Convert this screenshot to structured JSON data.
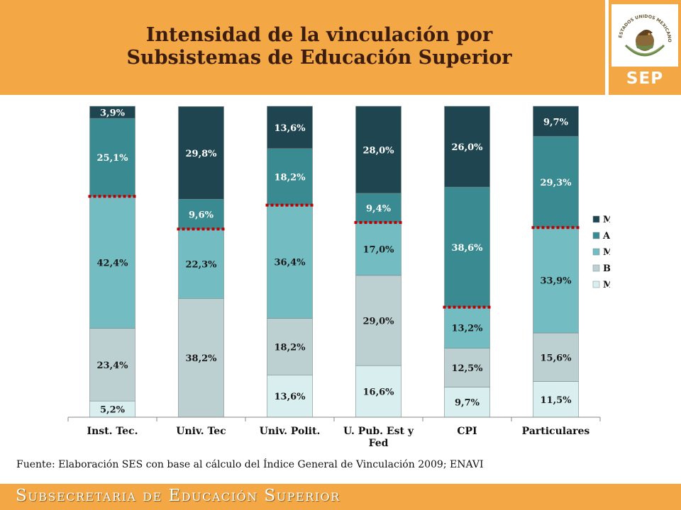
{
  "title": {
    "line1": "Intensidad de la vinculación por",
    "line2": "Subsistemas de Educación Superior"
  },
  "logo": {
    "seal_caption": "ESTADOS UNIDOS MEXICANOS",
    "sep_label": "SEP",
    "seal_icon": "mexican-coat-of-arms-icon"
  },
  "source": "Fuente: Elaboración SES con base al cálculo del Índice General de Vinculación 2009; ENAVI",
  "footer": "Subsecretaria de Educación Superior",
  "colors": {
    "header_bg": "#f3a745",
    "muy_alta": "#1f4650",
    "alta": "#3a8a91",
    "media": "#72bcc2",
    "baja": "#bccfd1",
    "muy_baja": "#d8eeef",
    "threshold_line": "#c00000"
  },
  "chart_data": {
    "type": "bar",
    "stacked": true,
    "ylim": [
      0,
      100
    ],
    "grid": false,
    "legend": "right",
    "categories": [
      "Inst. Tec.",
      "Univ. Tec",
      "Univ. Polit.",
      "U. Pub. Est y Fed",
      "CPI",
      "Particulares"
    ],
    "series": [
      {
        "name": "Muy baja",
        "color": "#d8eeef",
        "values": [
          5.2,
          0,
          13.6,
          16.6,
          9.7,
          11.5
        ],
        "labels": [
          "5,2%",
          "",
          "13,6%",
          "16,6%",
          "9,7%",
          "11,5%"
        ]
      },
      {
        "name": "Baja",
        "color": "#bccfd1",
        "values": [
          23.4,
          38.2,
          18.2,
          29.0,
          12.5,
          15.6
        ],
        "labels": [
          "23,4%",
          "38,2%",
          "18,2%",
          "29,0%",
          "12,5%",
          "15,6%"
        ]
      },
      {
        "name": "Media",
        "color": "#72bcc2",
        "values": [
          42.4,
          22.3,
          36.4,
          17.0,
          13.2,
          33.9
        ],
        "labels": [
          "42,4%",
          "22,3%",
          "36,4%",
          "17,0%",
          "13,2%",
          "33,9%"
        ]
      },
      {
        "name": "Alta",
        "color": "#3a8a91",
        "values": [
          25.1,
          9.6,
          18.2,
          9.4,
          38.6,
          29.3
        ],
        "labels": [
          "25,1%",
          "9,6%",
          "18,2%",
          "9,4%",
          "38,6%",
          "29,3%"
        ]
      },
      {
        "name": "Muy Alta",
        "color": "#1f4650",
        "values": [
          3.9,
          29.8,
          13.6,
          28.0,
          26.0,
          9.7
        ],
        "labels": [
          "3,9%",
          "29,8%",
          "13,6%",
          "28,0%",
          "26,0%",
          "9,7%"
        ]
      }
    ],
    "thresholds": [
      71.0,
      60.5,
      68.2,
      62.6,
      35.4,
      61.0
    ]
  }
}
